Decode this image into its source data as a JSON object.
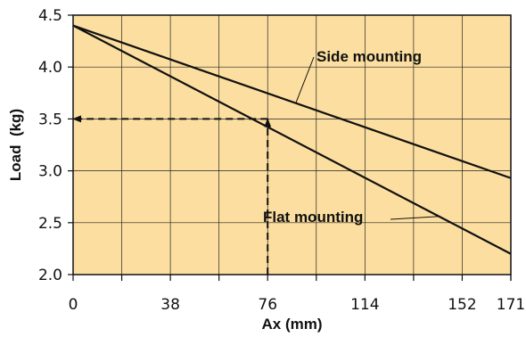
{
  "chart_data": {
    "type": "line",
    "xlabel": "Ax (mm)",
    "ylabel": "Load  (kg)",
    "xlim": [
      0,
      171
    ],
    "ylim": [
      2.0,
      4.5
    ],
    "x_ticks": [
      "0",
      "38",
      "76",
      "114",
      "152",
      "171"
    ],
    "y_ticks": [
      "2.0",
      "2.5",
      "3.0",
      "3.5",
      "4.0",
      "4.5"
    ],
    "grid": true,
    "background": "#FCDFA0",
    "line_color": "#111111",
    "series": [
      {
        "name": "Side mounting",
        "x": [
          0,
          171
        ],
        "y": [
          4.4,
          2.93
        ]
      },
      {
        "name": "Flat mounting",
        "x": [
          0,
          171
        ],
        "y": [
          4.4,
          2.2
        ]
      }
    ],
    "annotations": [
      {
        "type": "dashed-arrow",
        "from": [
          76,
          2.0
        ],
        "to": [
          76,
          3.5
        ]
      },
      {
        "type": "dashed-arrow",
        "from": [
          76,
          3.5
        ],
        "to": [
          0,
          3.5
        ]
      }
    ]
  }
}
